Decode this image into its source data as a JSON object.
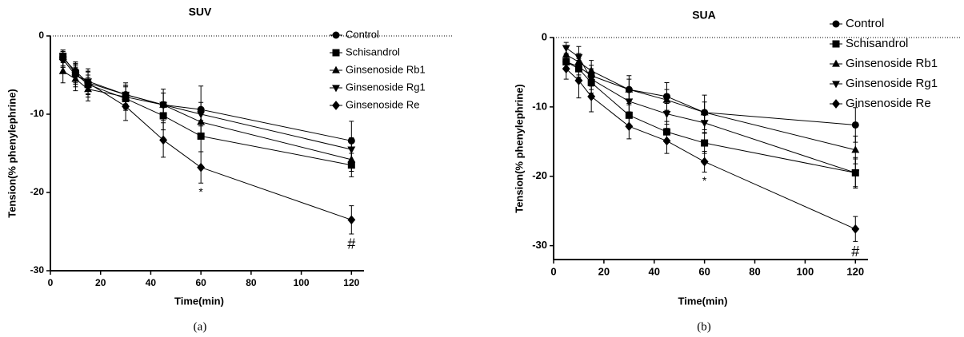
{
  "chart_data": [
    {
      "type": "line",
      "title": "SUV",
      "caption": "(a)",
      "xlabel": "Time(min)",
      "ylabel": "Tension(% phenylephrine)",
      "x": [
        5,
        10,
        15,
        30,
        45,
        60,
        120
      ],
      "xlim": [
        0,
        125
      ],
      "xticks": [
        0,
        20,
        40,
        60,
        80,
        100,
        120
      ],
      "ylim": [
        -30,
        0
      ],
      "yticks": [
        -30,
        -20,
        -10,
        0
      ],
      "reference_line": 0,
      "series": [
        {
          "name": "Control",
          "color": "#000000",
          "marker": "circle",
          "values": [
            -2.8,
            -4.5,
            -6,
            -7.5,
            -8.8,
            -9.4,
            -13.4
          ],
          "errors": [
            1,
            1.2,
            1.5,
            1.5,
            2,
            3,
            2.5
          ]
        },
        {
          "name": "Schisandrol",
          "color": "#000000",
          "marker": "square",
          "values": [
            -2.6,
            -4.8,
            -6.2,
            -8,
            -10.2,
            -12.8,
            -16.5
          ],
          "errors": [
            0.8,
            1.2,
            1.2,
            1.5,
            1.8,
            2,
            1.5
          ]
        },
        {
          "name": "Ginsenoside Rb1",
          "color": "#000000",
          "marker": "triangle-up",
          "values": [
            -4.5,
            -5.5,
            -6.8,
            -7.8,
            -8.8,
            -11,
            -15.8
          ],
          "errors": [
            1.5,
            1.5,
            1.5,
            1.5,
            1.5,
            1.5,
            1.5
          ]
        },
        {
          "name": "Ginsenoside Rg1",
          "color": "#000000",
          "marker": "triangle-down",
          "values": [
            -3,
            -5,
            -5.8,
            -7.5,
            -8.8,
            -10,
            -14.5
          ],
          "errors": [
            1,
            1.2,
            1.2,
            1.2,
            1.5,
            1.5,
            1.5
          ]
        },
        {
          "name": "Ginsenoside Re",
          "color": "#000000",
          "marker": "diamond",
          "values": [
            -3,
            -5,
            -6,
            -9,
            -13.3,
            -16.8,
            -23.5
          ],
          "errors": [
            1,
            1.5,
            1.8,
            1.8,
            2.2,
            2,
            1.8
          ]
        }
      ],
      "annotations": [
        {
          "text": "*",
          "x": 60
        },
        {
          "text": "#",
          "x": 120
        }
      ]
    },
    {
      "type": "line",
      "title": "SUA",
      "caption": "(b)",
      "xlabel": "Time(min)",
      "ylabel": "Tension(% phenylephrine)",
      "x": [
        5,
        10,
        15,
        30,
        45,
        60,
        120
      ],
      "xlim": [
        0,
        125
      ],
      "xticks": [
        0,
        20,
        40,
        60,
        80,
        100,
        120
      ],
      "ylim": [
        -32,
        0
      ],
      "yticks": [
        -30,
        -20,
        -10,
        0
      ],
      "reference_line": 0,
      "series": [
        {
          "name": "Control",
          "color": "#000000",
          "marker": "circle",
          "values": [
            -3.5,
            -4.2,
            -5.5,
            -7.5,
            -8.5,
            -10.8,
            -12.6
          ],
          "errors": [
            1,
            1.2,
            1.5,
            2,
            2,
            2.5,
            2.5
          ]
        },
        {
          "name": "Schisandrol",
          "color": "#000000",
          "marker": "square",
          "values": [
            -3.5,
            -4.5,
            -6.5,
            -11.2,
            -13.6,
            -15.2,
            -19.5
          ],
          "errors": [
            1,
            1.2,
            1.5,
            1.5,
            1.5,
            1.5,
            2.2
          ]
        },
        {
          "name": "Ginsenoside Rb1",
          "color": "#000000",
          "marker": "triangle-up",
          "values": [
            -2.5,
            -3.5,
            -4.8,
            -7.5,
            -9,
            -10.8,
            -16.2
          ],
          "errors": [
            1,
            1.2,
            1.5,
            1.5,
            1.5,
            1.5,
            2
          ]
        },
        {
          "name": "Ginsenoside Rg1",
          "color": "#000000",
          "marker": "triangle-down",
          "values": [
            -1.5,
            -2.8,
            -6,
            -9.2,
            -11,
            -12.3,
            -19.5
          ],
          "errors": [
            0.8,
            1.5,
            1.5,
            1.5,
            1.5,
            1.5,
            2
          ]
        },
        {
          "name": "Ginsenoside Re",
          "color": "#000000",
          "marker": "diamond",
          "values": [
            -4.5,
            -6.2,
            -8.5,
            -12.8,
            -14.9,
            -17.9,
            -27.6
          ],
          "errors": [
            1.5,
            2.5,
            2.2,
            1.8,
            1.8,
            1.5,
            1.8
          ]
        }
      ],
      "annotations": [
        {
          "text": "*",
          "x": 60
        },
        {
          "text": "#",
          "x": 120
        }
      ]
    }
  ]
}
